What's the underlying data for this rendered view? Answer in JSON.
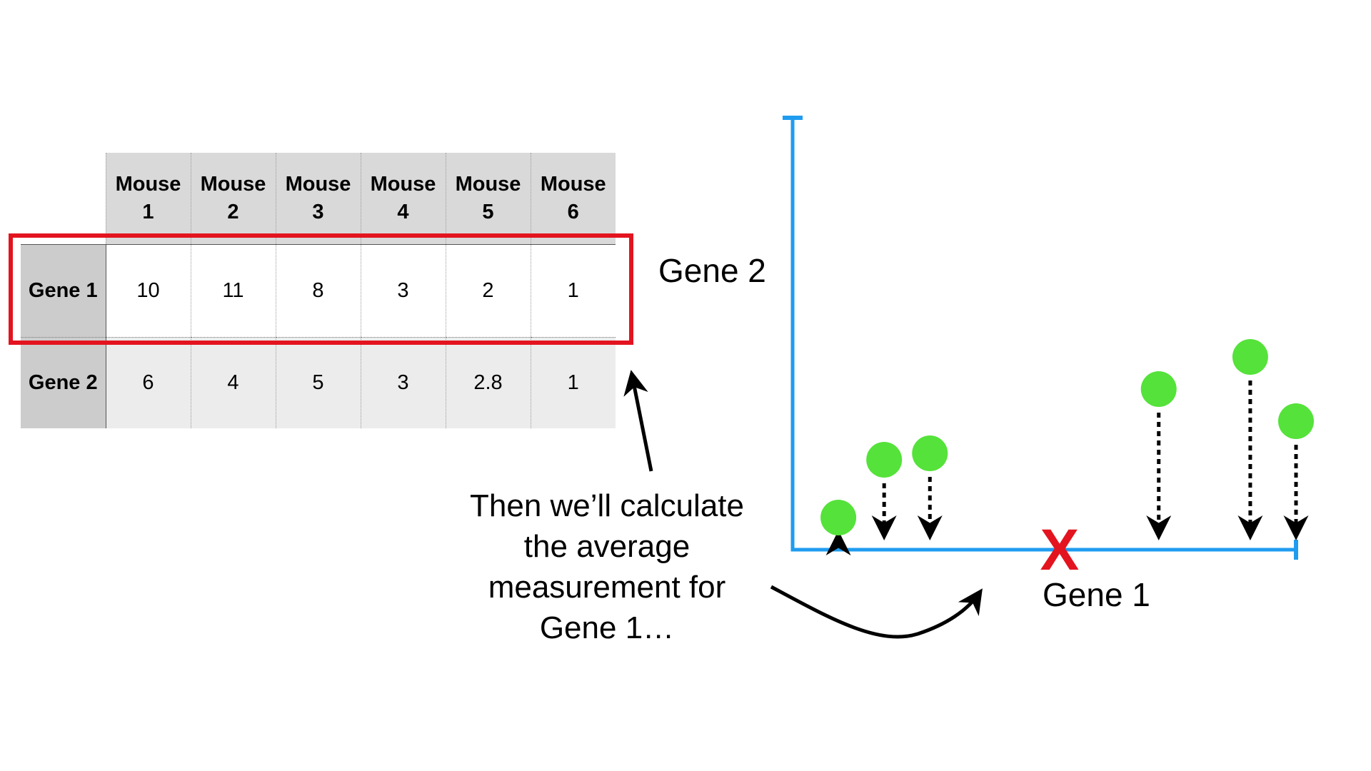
{
  "table": {
    "columns": [
      "Mouse\n1",
      "Mouse\n2",
      "Mouse\n3",
      "Mouse\n4",
      "Mouse\n5",
      "Mouse\n6"
    ],
    "rows": [
      {
        "label": "Gene 1",
        "values": [
          "10",
          "11",
          "8",
          "3",
          "2",
          "1"
        ]
      },
      {
        "label": "Gene 2",
        "values": [
          "6",
          "4",
          "5",
          "3",
          "2.8",
          "1"
        ]
      }
    ],
    "highlighted_row": "Gene 1"
  },
  "plot": {
    "x_label": "Gene 1",
    "y_label": "Gene 2",
    "points": [
      {
        "mouse": 1,
        "gene1": 10,
        "gene2": 6
      },
      {
        "mouse": 2,
        "gene1": 11,
        "gene2": 4
      },
      {
        "mouse": 3,
        "gene1": 8,
        "gene2": 5
      },
      {
        "mouse": 4,
        "gene1": 3,
        "gene2": 3
      },
      {
        "mouse": 5,
        "gene1": 2,
        "gene2": 2.8
      },
      {
        "mouse": 6,
        "gene1": 1,
        "gene2": 1
      }
    ],
    "average_marker": "X"
  },
  "caption": "Then we’ll calculate\nthe average\nmeasurement for\nGene 1…",
  "colors": {
    "axis": "#1f9cf0",
    "point": "#55e23a",
    "highlight": "#e3141f",
    "average_marker": "#e3141f",
    "arrow": "#000000"
  }
}
